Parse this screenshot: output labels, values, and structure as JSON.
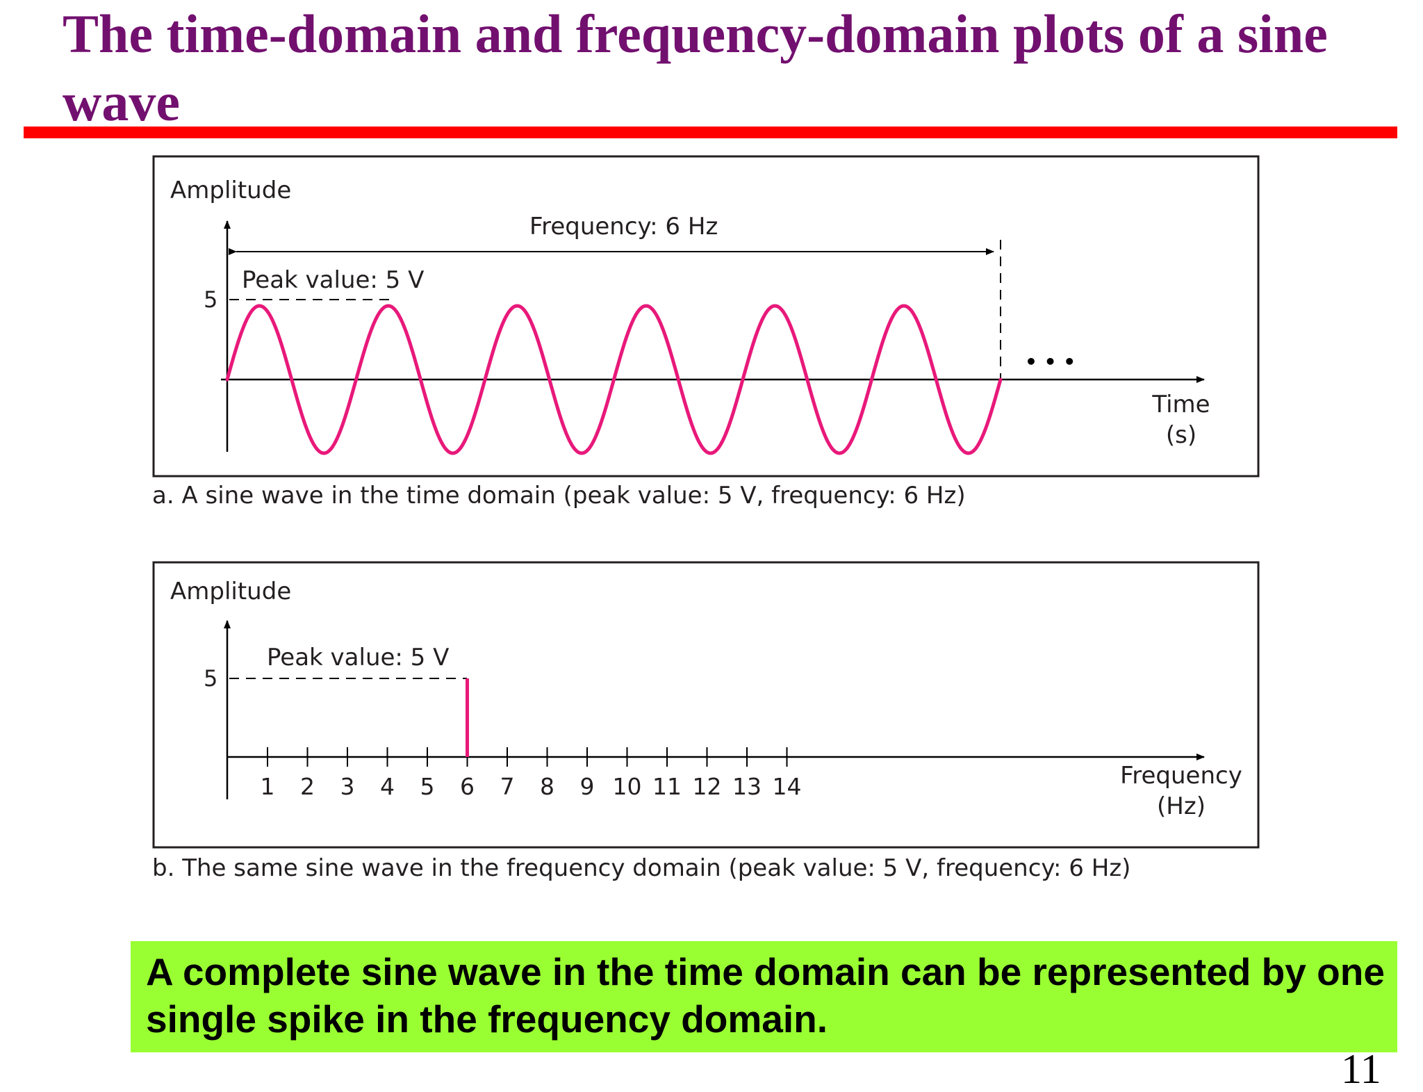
{
  "title": "The time-domain and frequency-domain plots of a sine wave",
  "colors": {
    "title": "#72106f",
    "rule": "#fe0000",
    "wave": "#e8197a",
    "callout_bg": "#99ff33"
  },
  "panel_a": {
    "y_axis_label": "Amplitude",
    "peak_tick_label": "5",
    "peak_label": "Peak value: 5 V",
    "frequency_label": "Frequency: 6 Hz",
    "ellipsis": "• • •",
    "x_axis_label_line1": "Time",
    "x_axis_label_line2": "(s)",
    "caption": "a. A sine wave in the time domain (peak value: 5 V, frequency: 6 Hz)",
    "cycles": 6,
    "peak": 5
  },
  "panel_b": {
    "y_axis_label": "Amplitude",
    "peak_tick_label": "5",
    "peak_label": "Peak value: 5 V",
    "x_ticks": [
      "1",
      "2",
      "3",
      "4",
      "5",
      "6",
      "7",
      "8",
      "9",
      "10",
      "11",
      "12",
      "13",
      "14"
    ],
    "x_axis_label_line1": "Frequency",
    "x_axis_label_line2": "(Hz)",
    "caption": "b. The same sine wave in the frequency domain (peak value: 5 V, frequency: 6 Hz)",
    "spike_frequency": 6,
    "spike_amplitude": 5
  },
  "callout": "A complete sine wave in the time domain can be represented by one single spike in the frequency domain.",
  "page_number_fragment": "11"
}
